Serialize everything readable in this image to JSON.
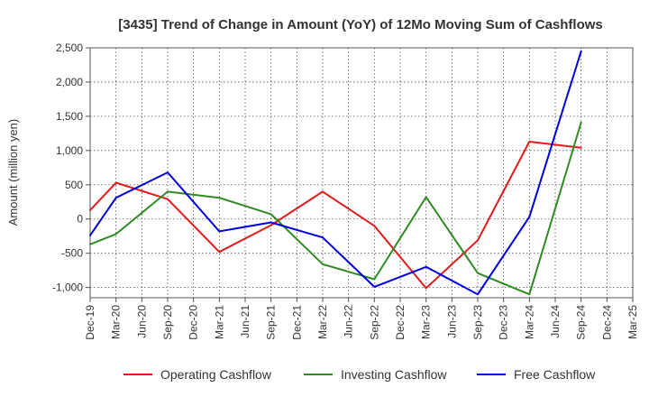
{
  "chart_data": {
    "type": "line",
    "title": "[3435]  Trend of Change in Amount (YoY) of 12Mo Moving Sum of Cashflows",
    "xlabel": "",
    "ylabel": "Amount (million yen)",
    "ylim": [
      -1150,
      2500
    ],
    "yticks": [
      2500,
      2000,
      1500,
      1000,
      500,
      0,
      -500,
      -1000
    ],
    "ytick_labels": [
      "2,500",
      "2,000",
      "1,500",
      "1,000",
      "500",
      "0",
      "-500",
      "-1,000"
    ],
    "categories": [
      "Dec-19",
      "Mar-20",
      "Jun-20",
      "Sep-20",
      "Dec-20",
      "Mar-21",
      "Jun-21",
      "Sep-21",
      "Dec-21",
      "Mar-22",
      "Jun-22",
      "Sep-22",
      "Dec-22",
      "Mar-23",
      "Jun-23",
      "Sep-23",
      "Dec-23",
      "Mar-24",
      "Jun-24",
      "Sep-24",
      "Dec-24",
      "Mar-25"
    ],
    "grid": true,
    "legend_position": "bottom",
    "series": [
      {
        "name": "Operating Cashflow",
        "color": "#e31a1c",
        "points": [
          [
            0,
            130
          ],
          [
            1,
            530
          ],
          [
            3,
            290
          ],
          [
            5,
            -480
          ],
          [
            7,
            -90
          ],
          [
            9,
            400
          ],
          [
            11,
            -100
          ],
          [
            13,
            -1010
          ],
          [
            15,
            -310
          ],
          [
            17,
            1130
          ],
          [
            19,
            1040
          ]
        ]
      },
      {
        "name": "Investing Cashflow",
        "color": "#2e8b22",
        "points": [
          [
            0,
            -370
          ],
          [
            1,
            -220
          ],
          [
            3,
            400
          ],
          [
            5,
            310
          ],
          [
            7,
            70
          ],
          [
            9,
            -660
          ],
          [
            11,
            -880
          ],
          [
            13,
            320
          ],
          [
            15,
            -790
          ],
          [
            17,
            -1100
          ],
          [
            19,
            1410
          ]
        ]
      },
      {
        "name": "Free Cashflow",
        "color": "#0000dd",
        "points": [
          [
            0,
            -240
          ],
          [
            1,
            310
          ],
          [
            3,
            680
          ],
          [
            5,
            -180
          ],
          [
            7,
            -50
          ],
          [
            9,
            -270
          ],
          [
            11,
            -990
          ],
          [
            13,
            -700
          ],
          [
            15,
            -1100
          ],
          [
            17,
            30
          ],
          [
            19,
            2450
          ]
        ]
      }
    ]
  }
}
